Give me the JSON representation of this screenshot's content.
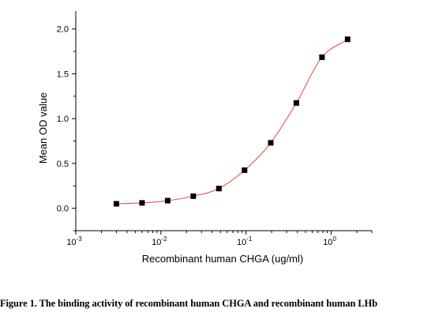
{
  "caption": "Figure 1. The binding activity of recombinant human CHGA and recombinant human LHb",
  "chart_data": {
    "type": "scatter",
    "title": "",
    "xlabel": "Recombinant human CHGA (ug/ml)",
    "ylabel": "Mean OD value",
    "xscale": "log",
    "xlim": [
      0.001,
      3
    ],
    "ylim": [
      -0.25,
      2.2
    ],
    "x_ticks": [
      {
        "value": 0.001,
        "base": "10",
        "exp": "-3"
      },
      {
        "value": 0.01,
        "base": "10",
        "exp": "-2"
      },
      {
        "value": 0.1,
        "base": "10",
        "exp": "-1"
      },
      {
        "value": 1,
        "base": "10",
        "exp": "0"
      }
    ],
    "y_ticks": [
      {
        "value": 0.0,
        "label": "0.0"
      },
      {
        "value": 0.5,
        "label": "0.5"
      },
      {
        "value": 1.0,
        "label": "1.0"
      },
      {
        "value": 1.5,
        "label": "1.5"
      },
      {
        "value": 2.0,
        "label": "2.0"
      }
    ],
    "grid": false,
    "series": [
      {
        "marker": "square",
        "marker_color": "#000000",
        "fit_line_color": "#e8453c",
        "x": [
          0.003,
          0.006,
          0.012,
          0.024,
          0.048,
          0.096,
          0.195,
          0.39,
          0.78,
          1.56
        ],
        "y": [
          0.05,
          0.06,
          0.085,
          0.135,
          0.22,
          0.425,
          0.73,
          1.175,
          1.685,
          1.885
        ]
      }
    ]
  }
}
